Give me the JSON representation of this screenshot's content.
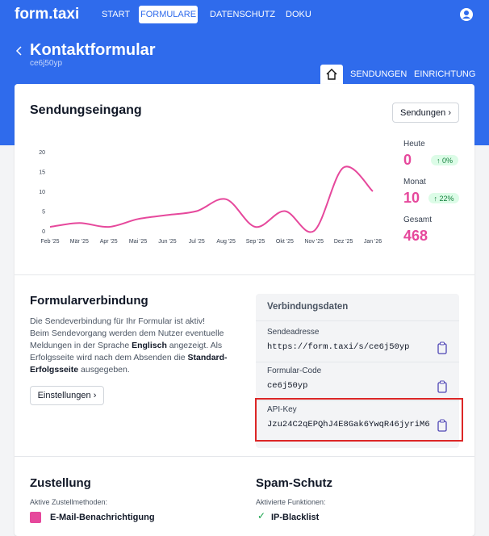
{
  "nav": {
    "brand": "form.taxi",
    "items": [
      "START",
      "FORMULARE",
      "DATENSCHUTZ",
      "DOKU"
    ]
  },
  "header": {
    "title": "Kontaktformular",
    "subtitle": "ce6j50yp",
    "tabs": [
      "SENDUNGEN",
      "EINRICHTUNG"
    ]
  },
  "inbox": {
    "title": "Sendungseingang",
    "button": "Sendungen",
    "stats": [
      {
        "label": "Heute",
        "value": 0,
        "change": "0%"
      },
      {
        "label": "Monat",
        "value": 10,
        "change": "22%"
      },
      {
        "label": "Gesamt",
        "value": 468
      }
    ]
  },
  "chart_data": {
    "type": "line",
    "color": "#e6489c",
    "categories": [
      "Feb '25",
      "Mär '25",
      "Apr '25",
      "Mai '25",
      "Jun '25",
      "Jul '25",
      "Aug '25",
      "Sep '25",
      "Okt '25",
      "Nov '25",
      "Dez '25",
      "Jan '26"
    ],
    "values": [
      1,
      2,
      1,
      3,
      4,
      5,
      8,
      1,
      5,
      0,
      16,
      10
    ],
    "ylim": [
      0,
      20
    ],
    "yticks": [
      0,
      5,
      10,
      15,
      20
    ]
  },
  "connection": {
    "title": "Formularverbindung",
    "paragraph": [
      "Die Sendeverbindung für Ihr Formular ist aktiv!",
      "Beim Sendevorgang werden dem Nutzer eventuelle Meldungen in der Sprache ",
      "Englisch",
      " angezeigt. Als Erfolgsseite wird nach dem Absenden die ",
      "Standard-Erfolgsseite",
      " ausgegeben."
    ],
    "button": "Einstellungen",
    "panel": {
      "title": "Verbindungsdaten",
      "fields": [
        {
          "label": "Sendeadresse",
          "value": "https://form.taxi/s/ce6j50yp"
        },
        {
          "label": "Formular-Code",
          "value": "ce6j50yp"
        },
        {
          "label": "API-Key",
          "value": "Jzu24C2qEPQhJ4E8Gak6YwqR46jyriM6"
        }
      ]
    }
  },
  "delivery": {
    "title": "Zustellung",
    "subtitle": "Aktive Zustellmethoden:",
    "items": [
      "E-Mail-Benachrichtigung"
    ]
  },
  "spam": {
    "title": "Spam-Schutz",
    "subtitle": "Aktivierte Funktionen:",
    "items": [
      "IP-Blacklist"
    ]
  }
}
